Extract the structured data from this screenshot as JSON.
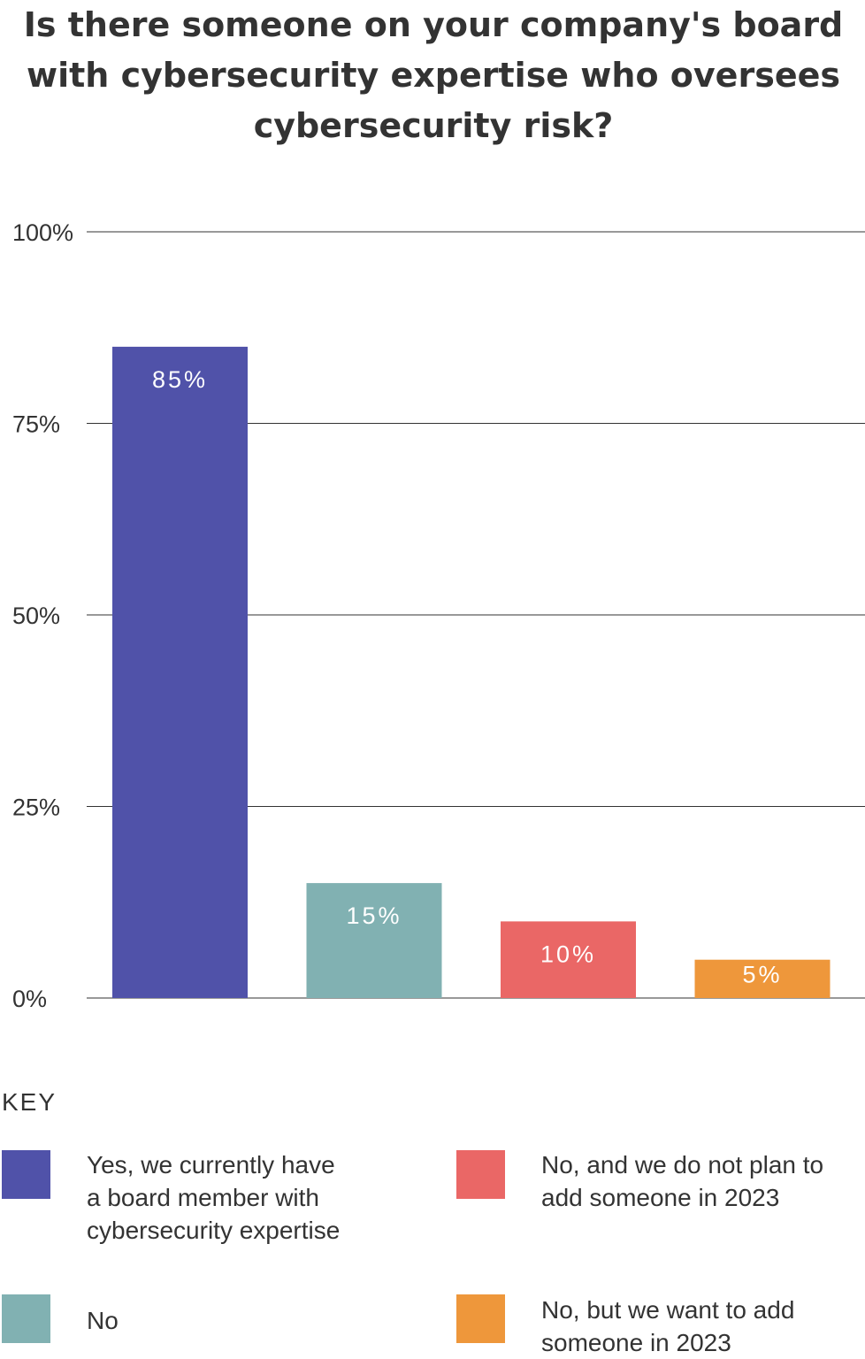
{
  "title": "Is there someone on your company's board with cybersecurity expertise who oversees cybersecurity risk?",
  "key_title": "KEY",
  "colors": {
    "yes": "#5052a9",
    "no": "#81b1b2",
    "no_no_plan": "#ea6766",
    "no_want": "#ee973b",
    "gridline": "#333333",
    "bar_label": "#ffffff"
  },
  "chart_data": {
    "type": "bar",
    "title": "Is there someone on your company's board with cybersecurity expertise who oversees cybersecurity risk?",
    "xlabel": "",
    "ylabel": "",
    "ylim": [
      0,
      100
    ],
    "yticks": [
      0,
      25,
      50,
      75,
      100
    ],
    "ytick_labels": [
      "0%",
      "25%",
      "50%",
      "75%",
      "100%"
    ],
    "grid": true,
    "legend_position": "bottom",
    "categories": [
      "Yes, we currently have a board member with cybersecurity expertise",
      "No",
      "No, and we do not plan to add someone in 2023",
      "No, but we want to add someone in 2023"
    ],
    "values": [
      85,
      15,
      10,
      5
    ],
    "value_labels": [
      "85%",
      "15%",
      "10%",
      "5%"
    ],
    "colors": [
      "#5052a9",
      "#81b1b2",
      "#ea6766",
      "#ee973b"
    ]
  },
  "legend": [
    {
      "label_lines": [
        "Yes, we currently have",
        "a board member with",
        "cybersecurity expertise"
      ],
      "color": "#5052a9"
    },
    {
      "label_lines": [
        "No, and we do not plan to",
        "add someone in 2023"
      ],
      "color": "#ea6766"
    },
    {
      "label_lines": [
        "No"
      ],
      "color": "#81b1b2"
    },
    {
      "label_lines": [
        "No, but we want to add",
        "someone in 2023"
      ],
      "color": "#ee973b"
    }
  ]
}
